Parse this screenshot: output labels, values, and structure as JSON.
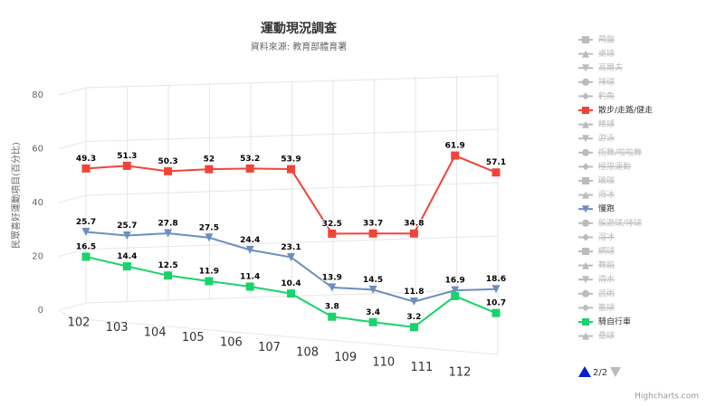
{
  "chart_data": {
    "type": "line3d",
    "title": "運動現況調查",
    "subtitle": "資料來源: 教育部體育署",
    "y_axis_label": "民眾喜好運動項目(百分比)",
    "categories": [
      "102",
      "103",
      "104",
      "105",
      "106",
      "107",
      "108",
      "109",
      "110",
      "111",
      "112"
    ],
    "ylim": [
      0,
      80
    ],
    "yticks": [
      0,
      20,
      40,
      60,
      80
    ],
    "grid": true,
    "series": [
      {
        "name": "飛盤",
        "marker": "square",
        "visible": false
      },
      {
        "name": "桌球",
        "marker": "triangle",
        "visible": false
      },
      {
        "name": "高爾夫",
        "marker": "triangle-down",
        "visible": false
      },
      {
        "name": "排球",
        "marker": "circle",
        "visible": false
      },
      {
        "name": "釣魚",
        "marker": "diamond",
        "visible": false
      },
      {
        "name": "散步/走路/健走",
        "marker": "square",
        "visible": true,
        "color": "#f04438",
        "values": [
          49.3,
          51.3,
          50.3,
          52,
          53.2,
          53.9,
          32.5,
          33.7,
          34.8,
          61.9,
          57.1
        ]
      },
      {
        "name": "棒球",
        "marker": "triangle",
        "visible": false
      },
      {
        "name": "游泳",
        "marker": "triangle-down",
        "visible": false
      },
      {
        "name": "街舞/啦啦舞",
        "marker": "circle",
        "visible": false
      },
      {
        "name": "極限運動",
        "marker": "diamond",
        "visible": false
      },
      {
        "name": "瑜珈",
        "marker": "square",
        "visible": false
      },
      {
        "name": "滑冰",
        "marker": "triangle",
        "visible": false
      },
      {
        "name": "慢跑",
        "marker": "triangle-down",
        "visible": true,
        "color": "#6c8ebf",
        "values": [
          25.7,
          25.7,
          27.8,
          27.5,
          24.4,
          23.1,
          13.9,
          14.5,
          11.8,
          16.9,
          18.6
        ]
      },
      {
        "name": "躲避球/排球",
        "marker": "circle",
        "visible": false
      },
      {
        "name": "溜冰",
        "marker": "diamond",
        "visible": false
      },
      {
        "name": "網球",
        "marker": "square",
        "visible": false
      },
      {
        "name": "舞蹈",
        "marker": "triangle",
        "visible": false
      },
      {
        "name": "滑水",
        "marker": "triangle-down",
        "visible": false
      },
      {
        "name": "武術",
        "marker": "circle",
        "visible": false
      },
      {
        "name": "籃球",
        "marker": "diamond",
        "visible": false
      },
      {
        "name": "騎自行車",
        "marker": "square",
        "visible": true,
        "color": "#19d36b",
        "values": [
          16.5,
          14.4,
          12.5,
          11.9,
          11.4,
          10.4,
          3.8,
          3.4,
          3.2,
          15,
          10.7
        ],
        "value_labels": [
          "16.5",
          "14.4",
          "12.5",
          "11.9",
          "11.4",
          "10.4",
          "3.8",
          "3.4",
          "3.2",
          null,
          "10.7"
        ]
      },
      {
        "name": "壘球",
        "marker": "triangle",
        "visible": false
      }
    ],
    "legend_page": "2/2",
    "credits": "Highcharts.com"
  }
}
